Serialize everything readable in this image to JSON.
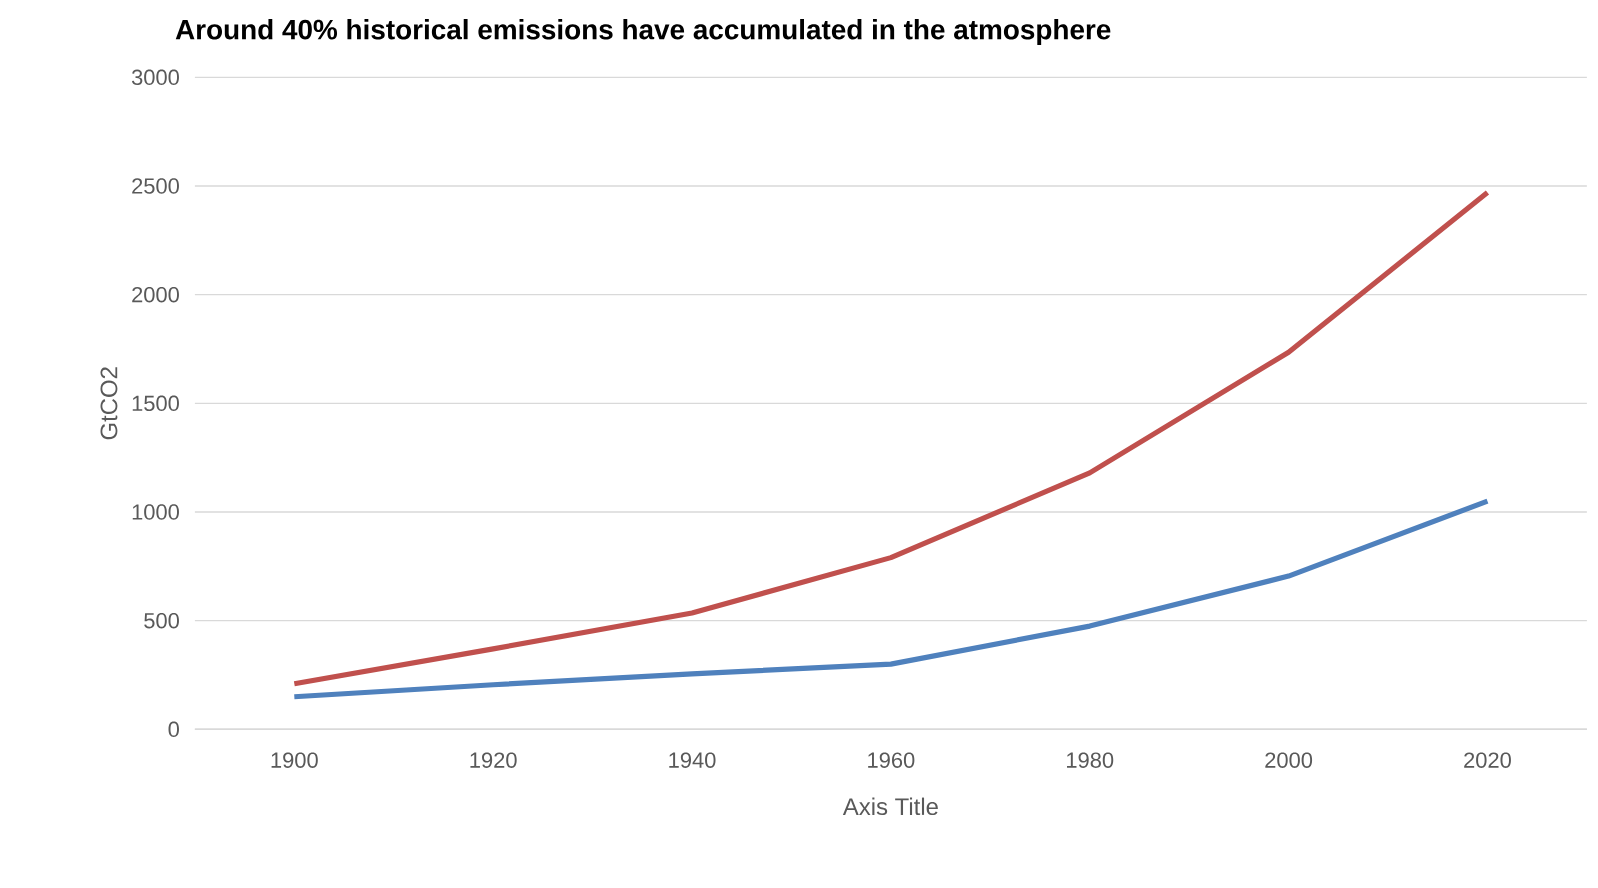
{
  "chart_data": {
    "type": "line",
    "title": "Around 40% historical emissions have accumulated in the atmosphere",
    "xlabel": "Axis Title",
    "ylabel": "GtCO2",
    "categories": [
      "1900",
      "1920",
      "1940",
      "1960",
      "1980",
      "2000",
      "2020"
    ],
    "series": [
      {
        "color": "#c0504d",
        "values": [
          210,
          370,
          535,
          790,
          1180,
          1735,
          2470
        ]
      },
      {
        "color": "#4f81bd",
        "values": [
          150,
          205,
          255,
          300,
          475,
          705,
          1050
        ]
      }
    ],
    "ylim": [
      0,
      3000
    ],
    "yticks": [
      0,
      500,
      1000,
      1500,
      2000,
      2500,
      3000
    ],
    "grid": "y"
  }
}
